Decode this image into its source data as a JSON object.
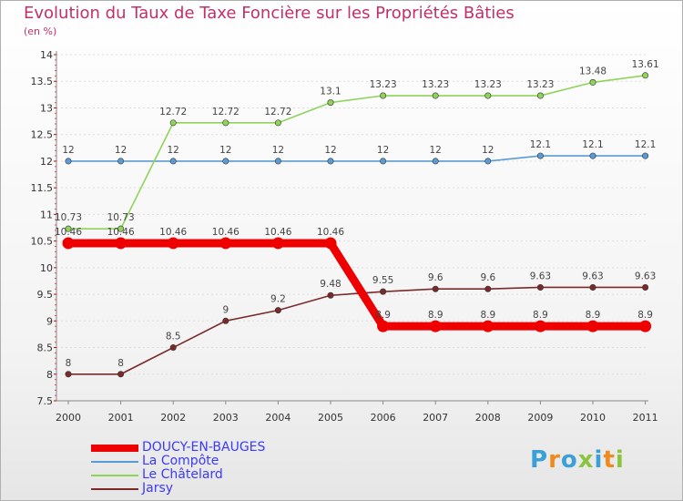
{
  "header": {
    "title": "Evolution du Taux de Taxe Foncière sur les Propriétés Bâties",
    "subtitle": "(en %)"
  },
  "logo": {
    "text": "Proxiti",
    "colors": [
      "#3aa0d8",
      "#f08a1c",
      "#3aa0d8",
      "#8bc53f",
      "#3aa0d8",
      "#f08a1c",
      "#8bc53f"
    ]
  },
  "chart_data": {
    "type": "line",
    "title": "Evolution du Taux de Taxe Foncière sur les Propriétés Bâties",
    "ylabel": "(en %)",
    "xlabel": "",
    "ylim": [
      7.5,
      14
    ],
    "yticks": [
      7.5,
      8,
      8.5,
      9,
      9.5,
      10,
      10.5,
      11,
      11.5,
      12,
      12.5,
      13,
      13.5,
      14
    ],
    "ytick_labels": [
      "7.5",
      "8",
      "8.5",
      "9",
      "9.5",
      "10",
      "10.5",
      "11",
      "11.5",
      "12",
      "12.5",
      "13",
      "13.5",
      "14"
    ],
    "categories": [
      "2000",
      "2001",
      "2002",
      "2003",
      "2004",
      "2005",
      "2006",
      "2007",
      "2008",
      "2009",
      "2010",
      "2011"
    ],
    "series": [
      {
        "name": "DOUCY-EN-BAUGES",
        "color": "#ee0000",
        "emphasis": true,
        "values": [
          10.46,
          10.46,
          10.46,
          10.46,
          10.46,
          10.46,
          8.9,
          8.9,
          8.9,
          8.9,
          8.9,
          8.9
        ],
        "labels": [
          "10.46",
          "10.46",
          "10.46",
          "10.46",
          "10.46",
          "10.46",
          "8.9",
          "8.9",
          "8.9",
          "8.9",
          "8.9",
          "8.9"
        ]
      },
      {
        "name": "La Compôte",
        "color": "#5b9bd5",
        "emphasis": false,
        "values": [
          12,
          12,
          12,
          12,
          12,
          12,
          12,
          12,
          12,
          12.1,
          12.1,
          12.1
        ],
        "labels": [
          "12",
          "12",
          "12",
          "12",
          "12",
          "12",
          "12",
          "12",
          "12",
          "12.1",
          "12.1",
          "12.1"
        ]
      },
      {
        "name": "Le Châtelard",
        "color": "#8fd35a",
        "emphasis": false,
        "values": [
          10.73,
          10.73,
          12.72,
          12.72,
          12.72,
          13.1,
          13.23,
          13.23,
          13.23,
          13.23,
          13.48,
          13.61
        ],
        "labels": [
          "10.73",
          "10.73",
          "12.72",
          "12.72",
          "12.72",
          "13.1",
          "13.23",
          "13.23",
          "13.23",
          "13.23",
          "13.48",
          "13.61"
        ]
      },
      {
        "name": "Jarsy",
        "color": "#7a2a2a",
        "emphasis": false,
        "values": [
          8,
          8,
          8.5,
          9,
          9.2,
          9.48,
          9.55,
          9.6,
          9.6,
          9.63,
          9.63,
          9.63
        ],
        "labels": [
          "8",
          "8",
          "8.5",
          "9",
          "9.2",
          "9.48",
          "9.55",
          "9.6",
          "9.6",
          "9.63",
          "9.63",
          "9.63"
        ]
      }
    ],
    "legend_position": "bottom-left"
  }
}
